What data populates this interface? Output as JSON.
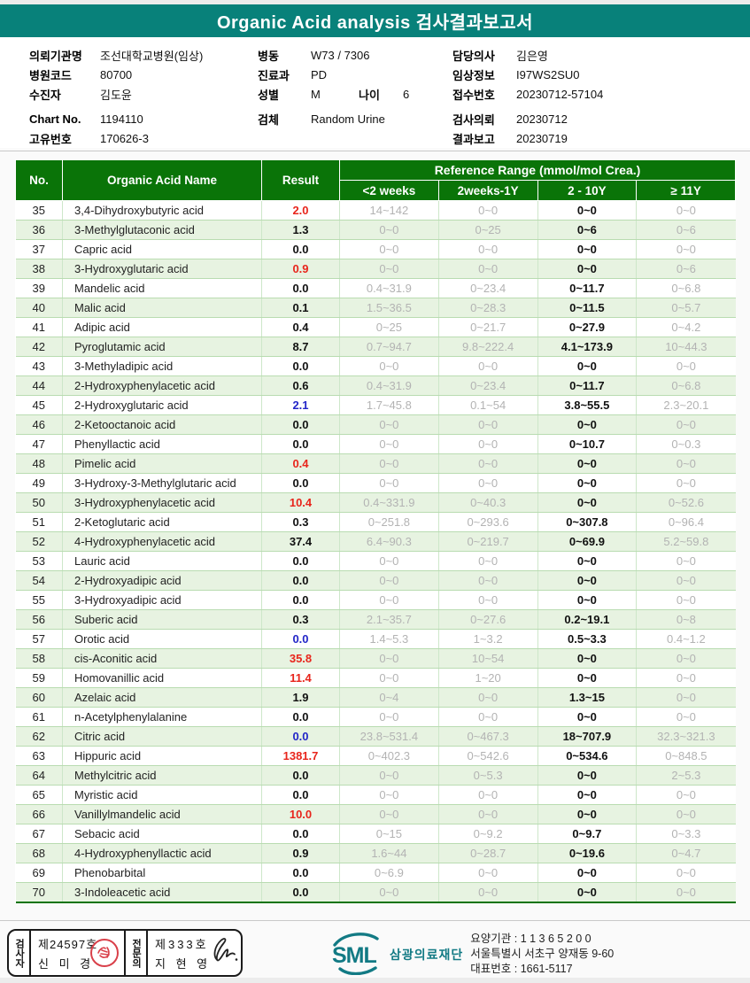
{
  "title": "Organic Acid analysis 검사결과보고서",
  "patient_info": {
    "col1": [
      {
        "label": "의뢰기관명",
        "value": "조선대학교병원(임상)"
      },
      {
        "label": "병원코드",
        "value": "80700"
      },
      {
        "label": "수진자",
        "value": "김도윤"
      },
      {
        "label": "Chart No.",
        "value": "1194110"
      },
      {
        "label": "고유번호",
        "value": "170626-3"
      }
    ],
    "col2": [
      {
        "label": "병동",
        "value": "W73 / 7306"
      },
      {
        "label": "진료과",
        "value": "PD"
      },
      {
        "label": "성별",
        "value": "M",
        "label2": "나이",
        "value2": "6"
      },
      {
        "label": "검체",
        "value": "Random Urine"
      }
    ],
    "col3": [
      {
        "label": "담당의사",
        "value": "김은영"
      },
      {
        "label": "임상정보",
        "value": "I97WS2SU0"
      },
      {
        "label": "접수번호",
        "value": "20230712-57104"
      },
      {
        "label": "검사의뢰",
        "value": "20230712"
      },
      {
        "label": "결과보고",
        "value": "20230719"
      }
    ]
  },
  "table": {
    "header": {
      "no": "No.",
      "name": "Organic Acid Name",
      "result": "Result",
      "ref_group": "Reference Range (mmol/mol Crea.)",
      "ref_cols": [
        "<2 weeks",
        "2weeks-1Y",
        "2 - 10Y",
        "≥ 11Y"
      ]
    },
    "rows": [
      {
        "no": "35",
        "name": "3,4-Dihydroxybutyric acid",
        "result": "2.0",
        "flag": "high",
        "refs": [
          "14~142",
          "0~0",
          "0~0",
          "0~0"
        ]
      },
      {
        "no": "36",
        "name": "3-Methylglutaconic acid",
        "result": "1.3",
        "flag": "normal",
        "refs": [
          "0~0",
          "0~25",
          "0~6",
          "0~6"
        ]
      },
      {
        "no": "37",
        "name": "Capric acid",
        "result": "0.0",
        "flag": "normal",
        "refs": [
          "0~0",
          "0~0",
          "0~0",
          "0~0"
        ]
      },
      {
        "no": "38",
        "name": "3-Hydroxyglutaric acid",
        "result": "0.9",
        "flag": "high",
        "refs": [
          "0~0",
          "0~0",
          "0~0",
          "0~6"
        ]
      },
      {
        "no": "39",
        "name": "Mandelic acid",
        "result": "0.0",
        "flag": "normal",
        "refs": [
          "0.4~31.9",
          "0~23.4",
          "0~11.7",
          "0~6.8"
        ]
      },
      {
        "no": "40",
        "name": "Malic acid",
        "result": "0.1",
        "flag": "normal",
        "refs": [
          "1.5~36.5",
          "0~28.3",
          "0~11.5",
          "0~5.7"
        ]
      },
      {
        "no": "41",
        "name": "Adipic acid",
        "result": "0.4",
        "flag": "normal",
        "refs": [
          "0~25",
          "0~21.7",
          "0~27.9",
          "0~4.2"
        ]
      },
      {
        "no": "42",
        "name": "Pyroglutamic acid",
        "result": "8.7",
        "flag": "normal",
        "refs": [
          "0.7~94.7",
          "9.8~222.4",
          "4.1~173.9",
          "10~44.3"
        ]
      },
      {
        "no": "43",
        "name": "3-Methyladipic acid",
        "result": "0.0",
        "flag": "normal",
        "refs": [
          "0~0",
          "0~0",
          "0~0",
          "0~0"
        ]
      },
      {
        "no": "44",
        "name": "2-Hydroxyphenylacetic acid",
        "result": "0.6",
        "flag": "normal",
        "refs": [
          "0.4~31.9",
          "0~23.4",
          "0~11.7",
          "0~6.8"
        ]
      },
      {
        "no": "45",
        "name": "2-Hydroxyglutaric acid",
        "result": "2.1",
        "flag": "low",
        "refs": [
          "1.7~45.8",
          "0.1~54",
          "3.8~55.5",
          "2.3~20.1"
        ]
      },
      {
        "no": "46",
        "name": "2-Ketooctanoic acid",
        "result": "0.0",
        "flag": "normal",
        "refs": [
          "0~0",
          "0~0",
          "0~0",
          "0~0"
        ]
      },
      {
        "no": "47",
        "name": "Phenyllactic acid",
        "result": "0.0",
        "flag": "normal",
        "refs": [
          "0~0",
          "0~0",
          "0~10.7",
          "0~0.3"
        ]
      },
      {
        "no": "48",
        "name": "Pimelic acid",
        "result": "0.4",
        "flag": "high",
        "refs": [
          "0~0",
          "0~0",
          "0~0",
          "0~0"
        ]
      },
      {
        "no": "49",
        "name": "3-Hydroxy-3-Methylglutaric acid",
        "result": "0.0",
        "flag": "normal",
        "refs": [
          "0~0",
          "0~0",
          "0~0",
          "0~0"
        ]
      },
      {
        "no": "50",
        "name": "3-Hydroxyphenylacetic acid",
        "result": "10.4",
        "flag": "high",
        "refs": [
          "0.4~331.9",
          "0~40.3",
          "0~0",
          "0~52.6"
        ]
      },
      {
        "no": "51",
        "name": "2-Ketoglutaric acid",
        "result": "0.3",
        "flag": "normal",
        "refs": [
          "0~251.8",
          "0~293.6",
          "0~307.8",
          "0~96.4"
        ]
      },
      {
        "no": "52",
        "name": "4-Hydroxyphenylacetic acid",
        "result": "37.4",
        "flag": "normal",
        "refs": [
          "6.4~90.3",
          "0~219.7",
          "0~69.9",
          "5.2~59.8"
        ]
      },
      {
        "no": "53",
        "name": "Lauric acid",
        "result": "0.0",
        "flag": "normal",
        "refs": [
          "0~0",
          "0~0",
          "0~0",
          "0~0"
        ]
      },
      {
        "no": "54",
        "name": "2-Hydroxyadipic acid",
        "result": "0.0",
        "flag": "normal",
        "refs": [
          "0~0",
          "0~0",
          "0~0",
          "0~0"
        ]
      },
      {
        "no": "55",
        "name": "3-Hydroxyadipic acid",
        "result": "0.0",
        "flag": "normal",
        "refs": [
          "0~0",
          "0~0",
          "0~0",
          "0~0"
        ]
      },
      {
        "no": "56",
        "name": "Suberic acid",
        "result": "0.3",
        "flag": "normal",
        "refs": [
          "2.1~35.7",
          "0~27.6",
          "0.2~19.1",
          "0~8"
        ]
      },
      {
        "no": "57",
        "name": "Orotic acid",
        "result": "0.0",
        "flag": "low",
        "refs": [
          "1.4~5.3",
          "1~3.2",
          "0.5~3.3",
          "0.4~1.2"
        ]
      },
      {
        "no": "58",
        "name": "cis-Aconitic acid",
        "result": "35.8",
        "flag": "high",
        "refs": [
          "0~0",
          "10~54",
          "0~0",
          "0~0"
        ]
      },
      {
        "no": "59",
        "name": "Homovanillic acid",
        "result": "11.4",
        "flag": "high",
        "refs": [
          "0~0",
          "1~20",
          "0~0",
          "0~0"
        ]
      },
      {
        "no": "60",
        "name": "Azelaic acid",
        "result": "1.9",
        "flag": "normal",
        "refs": [
          "0~4",
          "0~0",
          "1.3~15",
          "0~0"
        ]
      },
      {
        "no": "61",
        "name": "n-Acetylphenylalanine",
        "result": "0.0",
        "flag": "normal",
        "refs": [
          "0~0",
          "0~0",
          "0~0",
          "0~0"
        ]
      },
      {
        "no": "62",
        "name": "Citric acid",
        "result": "0.0",
        "flag": "low",
        "refs": [
          "23.8~531.4",
          "0~467.3",
          "18~707.9",
          "32.3~321.3"
        ]
      },
      {
        "no": "63",
        "name": "Hippuric acid",
        "result": "1381.7",
        "flag": "high",
        "refs": [
          "0~402.3",
          "0~542.6",
          "0~534.6",
          "0~848.5"
        ]
      },
      {
        "no": "64",
        "name": "Methylcitric acid",
        "result": "0.0",
        "flag": "normal",
        "refs": [
          "0~0",
          "0~5.3",
          "0~0",
          "2~5.3"
        ]
      },
      {
        "no": "65",
        "name": "Myristic acid",
        "result": "0.0",
        "flag": "normal",
        "refs": [
          "0~0",
          "0~0",
          "0~0",
          "0~0"
        ]
      },
      {
        "no": "66",
        "name": "Vanillylmandelic acid",
        "result": "10.0",
        "flag": "high",
        "refs": [
          "0~0",
          "0~0",
          "0~0",
          "0~0"
        ]
      },
      {
        "no": "67",
        "name": "Sebacic acid",
        "result": "0.0",
        "flag": "normal",
        "refs": [
          "0~15",
          "0~9.2",
          "0~9.7",
          "0~3.3"
        ]
      },
      {
        "no": "68",
        "name": "4-Hydroxyphenyllactic acid",
        "result": "0.9",
        "flag": "normal",
        "refs": [
          "1.6~44",
          "0~28.7",
          "0~19.6",
          "0~4.7"
        ]
      },
      {
        "no": "69",
        "name": "Phenobarbital",
        "result": "0.0",
        "flag": "normal",
        "refs": [
          "0~6.9",
          "0~0",
          "0~0",
          "0~0"
        ]
      },
      {
        "no": "70",
        "name": "3-Indoleacetic acid",
        "result": "0.0",
        "flag": "normal",
        "refs": [
          "0~0",
          "0~0",
          "0~0",
          "0~0"
        ]
      }
    ]
  },
  "footer": {
    "examiner_label": "검사자",
    "examiner_cert": "제24597호",
    "examiner_name": "신 미 경",
    "specialist_label": "전문의",
    "specialist_cert": "제333호",
    "specialist_name": "지 현 영",
    "logo_text": "SML",
    "org_name": "삼광의료재단",
    "address_line1": "요양기관 : 1 1 3 6 5 2 0 0",
    "address_line2": "서울특별시 서초구 양재동 9-60",
    "address_line3": "대표번호 : 1661-5117"
  },
  "colors": {
    "title_bar": "#08817a",
    "table_header": "#0a7408",
    "row_alt": "#e7f3e1",
    "result_high": "#e8251c",
    "result_low": "#2326c8",
    "logo_teal": "#127a84"
  }
}
